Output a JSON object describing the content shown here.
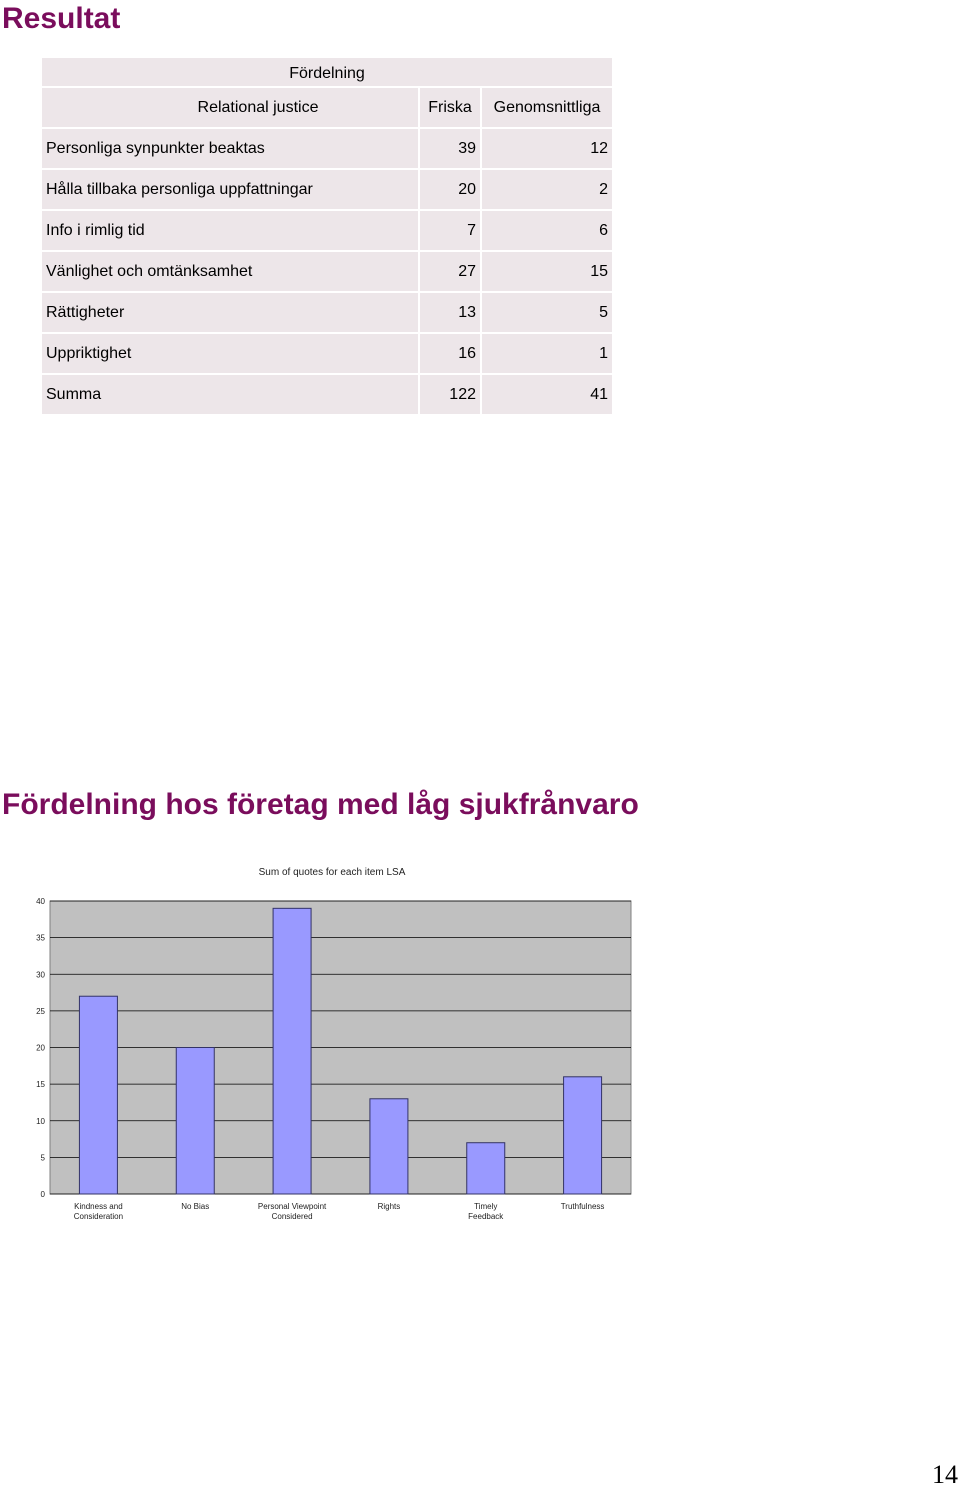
{
  "headings": {
    "result": "Resultat",
    "distribution_title": "Fördelning hos företag med låg sjukfrånvaro"
  },
  "table": {
    "caption": "Fördelning",
    "columns": [
      "Relational justice",
      "Friska",
      "Genomsnittliga"
    ],
    "rows": [
      {
        "label": "Personliga synpunkter beaktas",
        "friska": "39",
        "genomsnittliga": "12"
      },
      {
        "label": "Hålla tillbaka personliga uppfattningar",
        "friska": "20",
        "genomsnittliga": "2"
      },
      {
        "label": "Info i rimlig tid",
        "friska": "7",
        "genomsnittliga": "6"
      },
      {
        "label": "Vänlighet och omtänksamhet",
        "friska": "27",
        "genomsnittliga": "15"
      },
      {
        "label": "Rättigheter",
        "friska": "13",
        "genomsnittliga": "5"
      },
      {
        "label": "Uppriktighet",
        "friska": "16",
        "genomsnittliga": "1"
      },
      {
        "label": "Summa",
        "friska": "122",
        "genomsnittliga": "41"
      }
    ]
  },
  "chart_data": {
    "type": "bar",
    "title": "Sum of quotes for each item LSA",
    "categories": [
      "Kindness and Consideration",
      "No Bias",
      "Personal Viewpoint Considered",
      "Rights",
      "Timely Feedback",
      "Truthfulness"
    ],
    "values": [
      27,
      20,
      39,
      13,
      7,
      16
    ],
    "ylim": [
      0,
      40
    ],
    "yticks": [
      0,
      5,
      10,
      15,
      20,
      25,
      30,
      35,
      40
    ],
    "xlabel": "",
    "ylabel": "",
    "grid": true,
    "legend": "none",
    "colors": {
      "bar": "#9999ff",
      "bar_border": "#333366",
      "plot_background": "#c0c0c0",
      "gridline": "#000000"
    }
  },
  "page_number": "14"
}
